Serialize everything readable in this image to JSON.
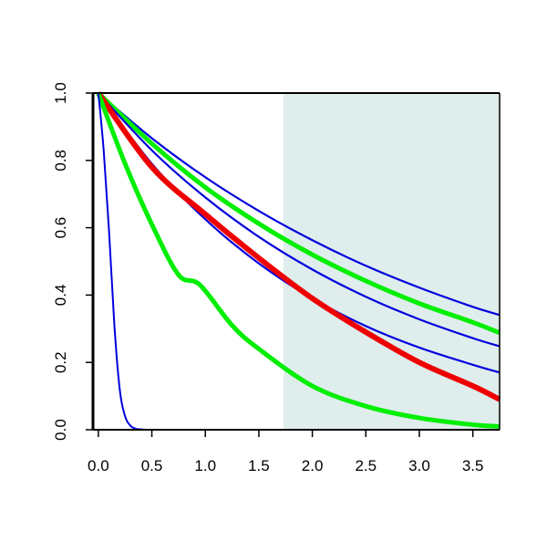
{
  "chart_data": {
    "type": "line",
    "title": "",
    "xlabel": "",
    "ylabel": "",
    "xlim": [
      -0.05,
      3.75
    ],
    "ylim": [
      0.0,
      1.0
    ],
    "x_ticks": [
      "0.0",
      "0.5",
      "1.0",
      "1.5",
      "2.0",
      "2.5",
      "3.0",
      "3.5"
    ],
    "y_ticks": [
      "0.0",
      "0.2",
      "0.4",
      "0.6",
      "0.8",
      "1.0"
    ],
    "shaded_region": {
      "x_from": 1.73,
      "x_to": 3.75,
      "color": "#dfeded"
    },
    "series": [
      {
        "color": "#0000dd",
        "x": [
          0.0,
          0.5,
          1.0,
          1.5,
          2.0,
          2.5,
          3.0,
          3.5,
          3.75
        ],
        "y": [
          1.0,
          0.866,
          0.75,
          0.65,
          0.563,
          0.487,
          0.422,
          0.365,
          0.341
        ]
      },
      {
        "color": "#00ee00",
        "x": [
          0.0,
          0.5,
          1.0,
          1.5,
          2.0,
          2.5,
          3.0,
          3.5,
          3.75
        ],
        "y": [
          1.0,
          0.85,
          0.72,
          0.612,
          0.52,
          0.442,
          0.375,
          0.319,
          0.288
        ]
      },
      {
        "color": "#0000dd",
        "x": [
          0.0,
          0.5,
          1.0,
          1.5,
          2.0,
          2.5,
          3.0,
          3.5,
          3.75
        ],
        "y": [
          1.0,
          0.83,
          0.69,
          0.573,
          0.476,
          0.395,
          0.328,
          0.272,
          0.248
        ]
      },
      {
        "color": "#0000dd",
        "x": [
          0.0,
          0.5,
          1.0,
          1.5,
          2.0,
          2.5,
          3.0,
          3.5,
          3.75
        ],
        "y": [
          1.0,
          0.79,
          0.625,
          0.494,
          0.39,
          0.308,
          0.244,
          0.193,
          0.17
        ]
      },
      {
        "color": "#ee0000",
        "x": [
          0.0,
          0.5,
          1.0,
          1.5,
          2.0,
          2.5,
          3.0,
          3.5,
          3.75
        ],
        "y": [
          1.0,
          0.78,
          0.64,
          0.51,
          0.39,
          0.29,
          0.2,
          0.13,
          0.09
        ]
      },
      {
        "color": "#00ee00",
        "x": [
          0.0,
          0.25,
          0.5,
          0.75,
          0.95,
          1.25,
          1.5,
          2.0,
          2.5,
          3.0,
          3.5,
          3.75
        ],
        "y": [
          1.0,
          0.79,
          0.61,
          0.46,
          0.43,
          0.31,
          0.24,
          0.13,
          0.07,
          0.035,
          0.015,
          0.01
        ]
      },
      {
        "color": "#0000dd",
        "x": [
          0.0,
          0.05,
          0.1,
          0.15,
          0.2,
          0.25,
          0.3,
          0.35,
          0.4,
          0.5,
          1.0,
          3.75
        ],
        "y": [
          1.0,
          0.83,
          0.59,
          0.31,
          0.12,
          0.04,
          0.012,
          0.003,
          0.001,
          0.0,
          0.0,
          0.0
        ]
      }
    ]
  }
}
